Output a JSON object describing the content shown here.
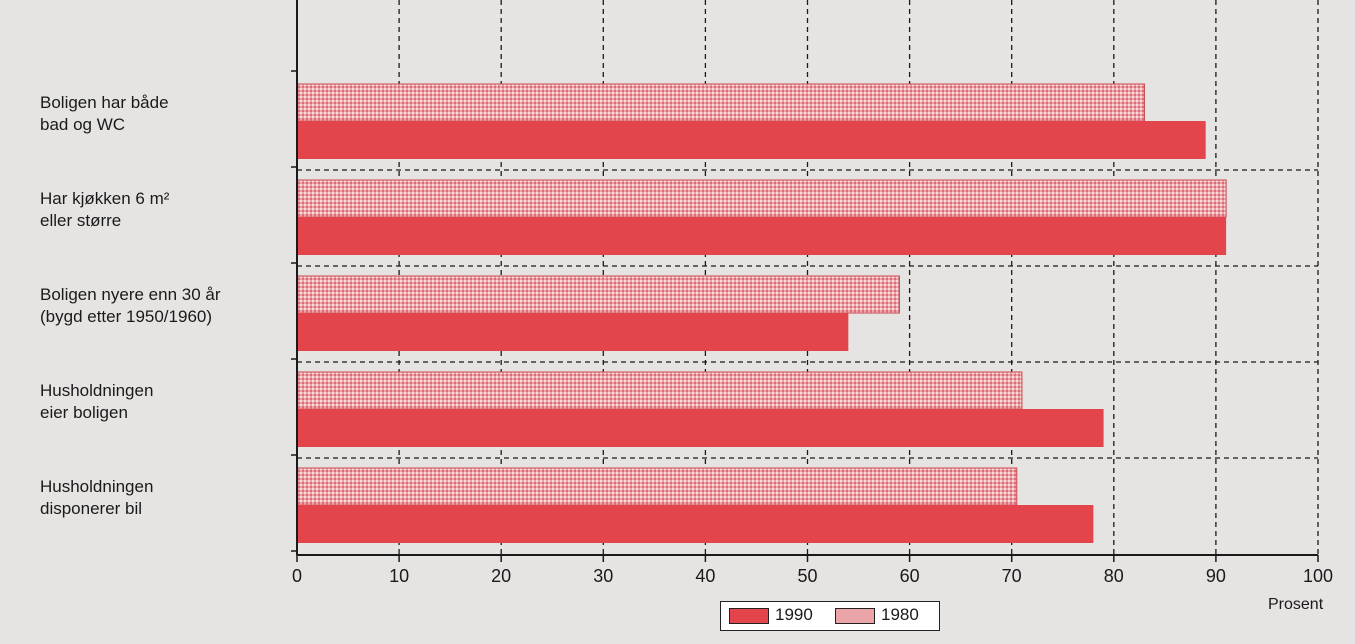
{
  "chart_data": {
    "type": "bar",
    "orientation": "horizontal",
    "categories": [
      [
        "Boligen har både",
        "bad og WC"
      ],
      [
        "Har kjøkken 6 m²",
        "eller større"
      ],
      [
        "Boligen nyere enn 30 år",
        "(bygd etter 1950/1960)"
      ],
      [
        "Husholdningen",
        "eier boligen"
      ],
      [
        "Husholdningen",
        "disponerer bil"
      ]
    ],
    "series": [
      {
        "name": "1980",
        "values": [
          83,
          91,
          59,
          71,
          70.5
        ],
        "color": "#e8959a",
        "pattern": "dotted"
      },
      {
        "name": "1990",
        "values": [
          89,
          91,
          54,
          79,
          78
        ],
        "color": "#e4454d",
        "pattern": "solid"
      }
    ],
    "xlabel": "Prosent",
    "xlim": [
      0,
      100
    ],
    "xticks": [
      0,
      10,
      20,
      30,
      40,
      50,
      60,
      70,
      80,
      90,
      100
    ],
    "grid": true,
    "legend": {
      "position": "bottom-center",
      "order": [
        "1990",
        "1980"
      ]
    }
  }
}
